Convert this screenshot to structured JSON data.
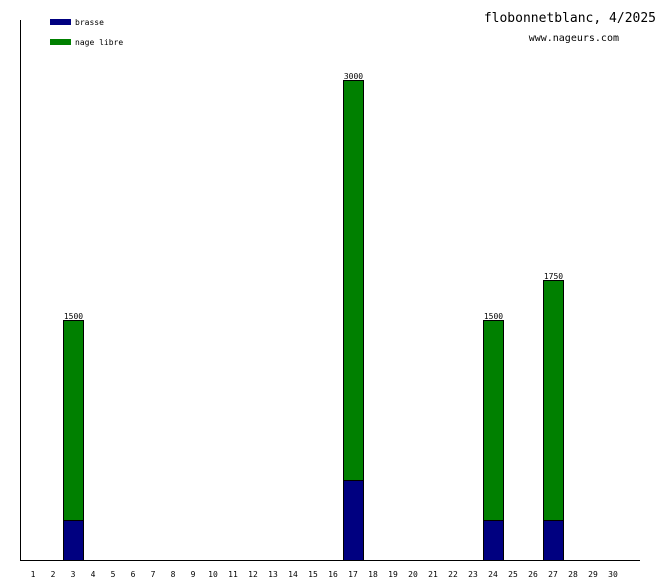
{
  "chart_data": {
    "type": "bar",
    "stacked": true,
    "title": "flobonnetblanc, 4/2025",
    "subtitle": "www.nageurs.com",
    "xlabel": "",
    "ylabel": "",
    "ylim": [
      0,
      3400
    ],
    "grid": false,
    "legend_position": "top-left",
    "categories": [
      "1",
      "2",
      "3",
      "4",
      "5",
      "6",
      "7",
      "8",
      "9",
      "10",
      "11",
      "12",
      "13",
      "14",
      "15",
      "16",
      "17",
      "18",
      "19",
      "20",
      "21",
      "22",
      "23",
      "24",
      "25",
      "26",
      "27",
      "28",
      "29",
      "30"
    ],
    "series": [
      {
        "name": "brasse",
        "color": "#000080",
        "values": [
          0,
          0,
          250,
          0,
          0,
          0,
          0,
          0,
          0,
          0,
          0,
          0,
          0,
          0,
          0,
          0,
          500,
          0,
          0,
          0,
          0,
          0,
          0,
          250,
          0,
          0,
          250,
          0,
          0,
          0
        ]
      },
      {
        "name": "nage libre",
        "color": "#008000",
        "values": [
          0,
          0,
          1250,
          0,
          0,
          0,
          0,
          0,
          0,
          0,
          0,
          0,
          0,
          0,
          0,
          0,
          2500,
          0,
          0,
          0,
          0,
          0,
          0,
          1250,
          0,
          0,
          1500,
          0,
          0,
          0
        ]
      }
    ],
    "totals": [
      0,
      0,
      1500,
      0,
      0,
      0,
      0,
      0,
      0,
      0,
      0,
      0,
      0,
      0,
      0,
      0,
      3000,
      0,
      0,
      0,
      0,
      0,
      0,
      1500,
      0,
      0,
      1750,
      0,
      0,
      0
    ]
  }
}
